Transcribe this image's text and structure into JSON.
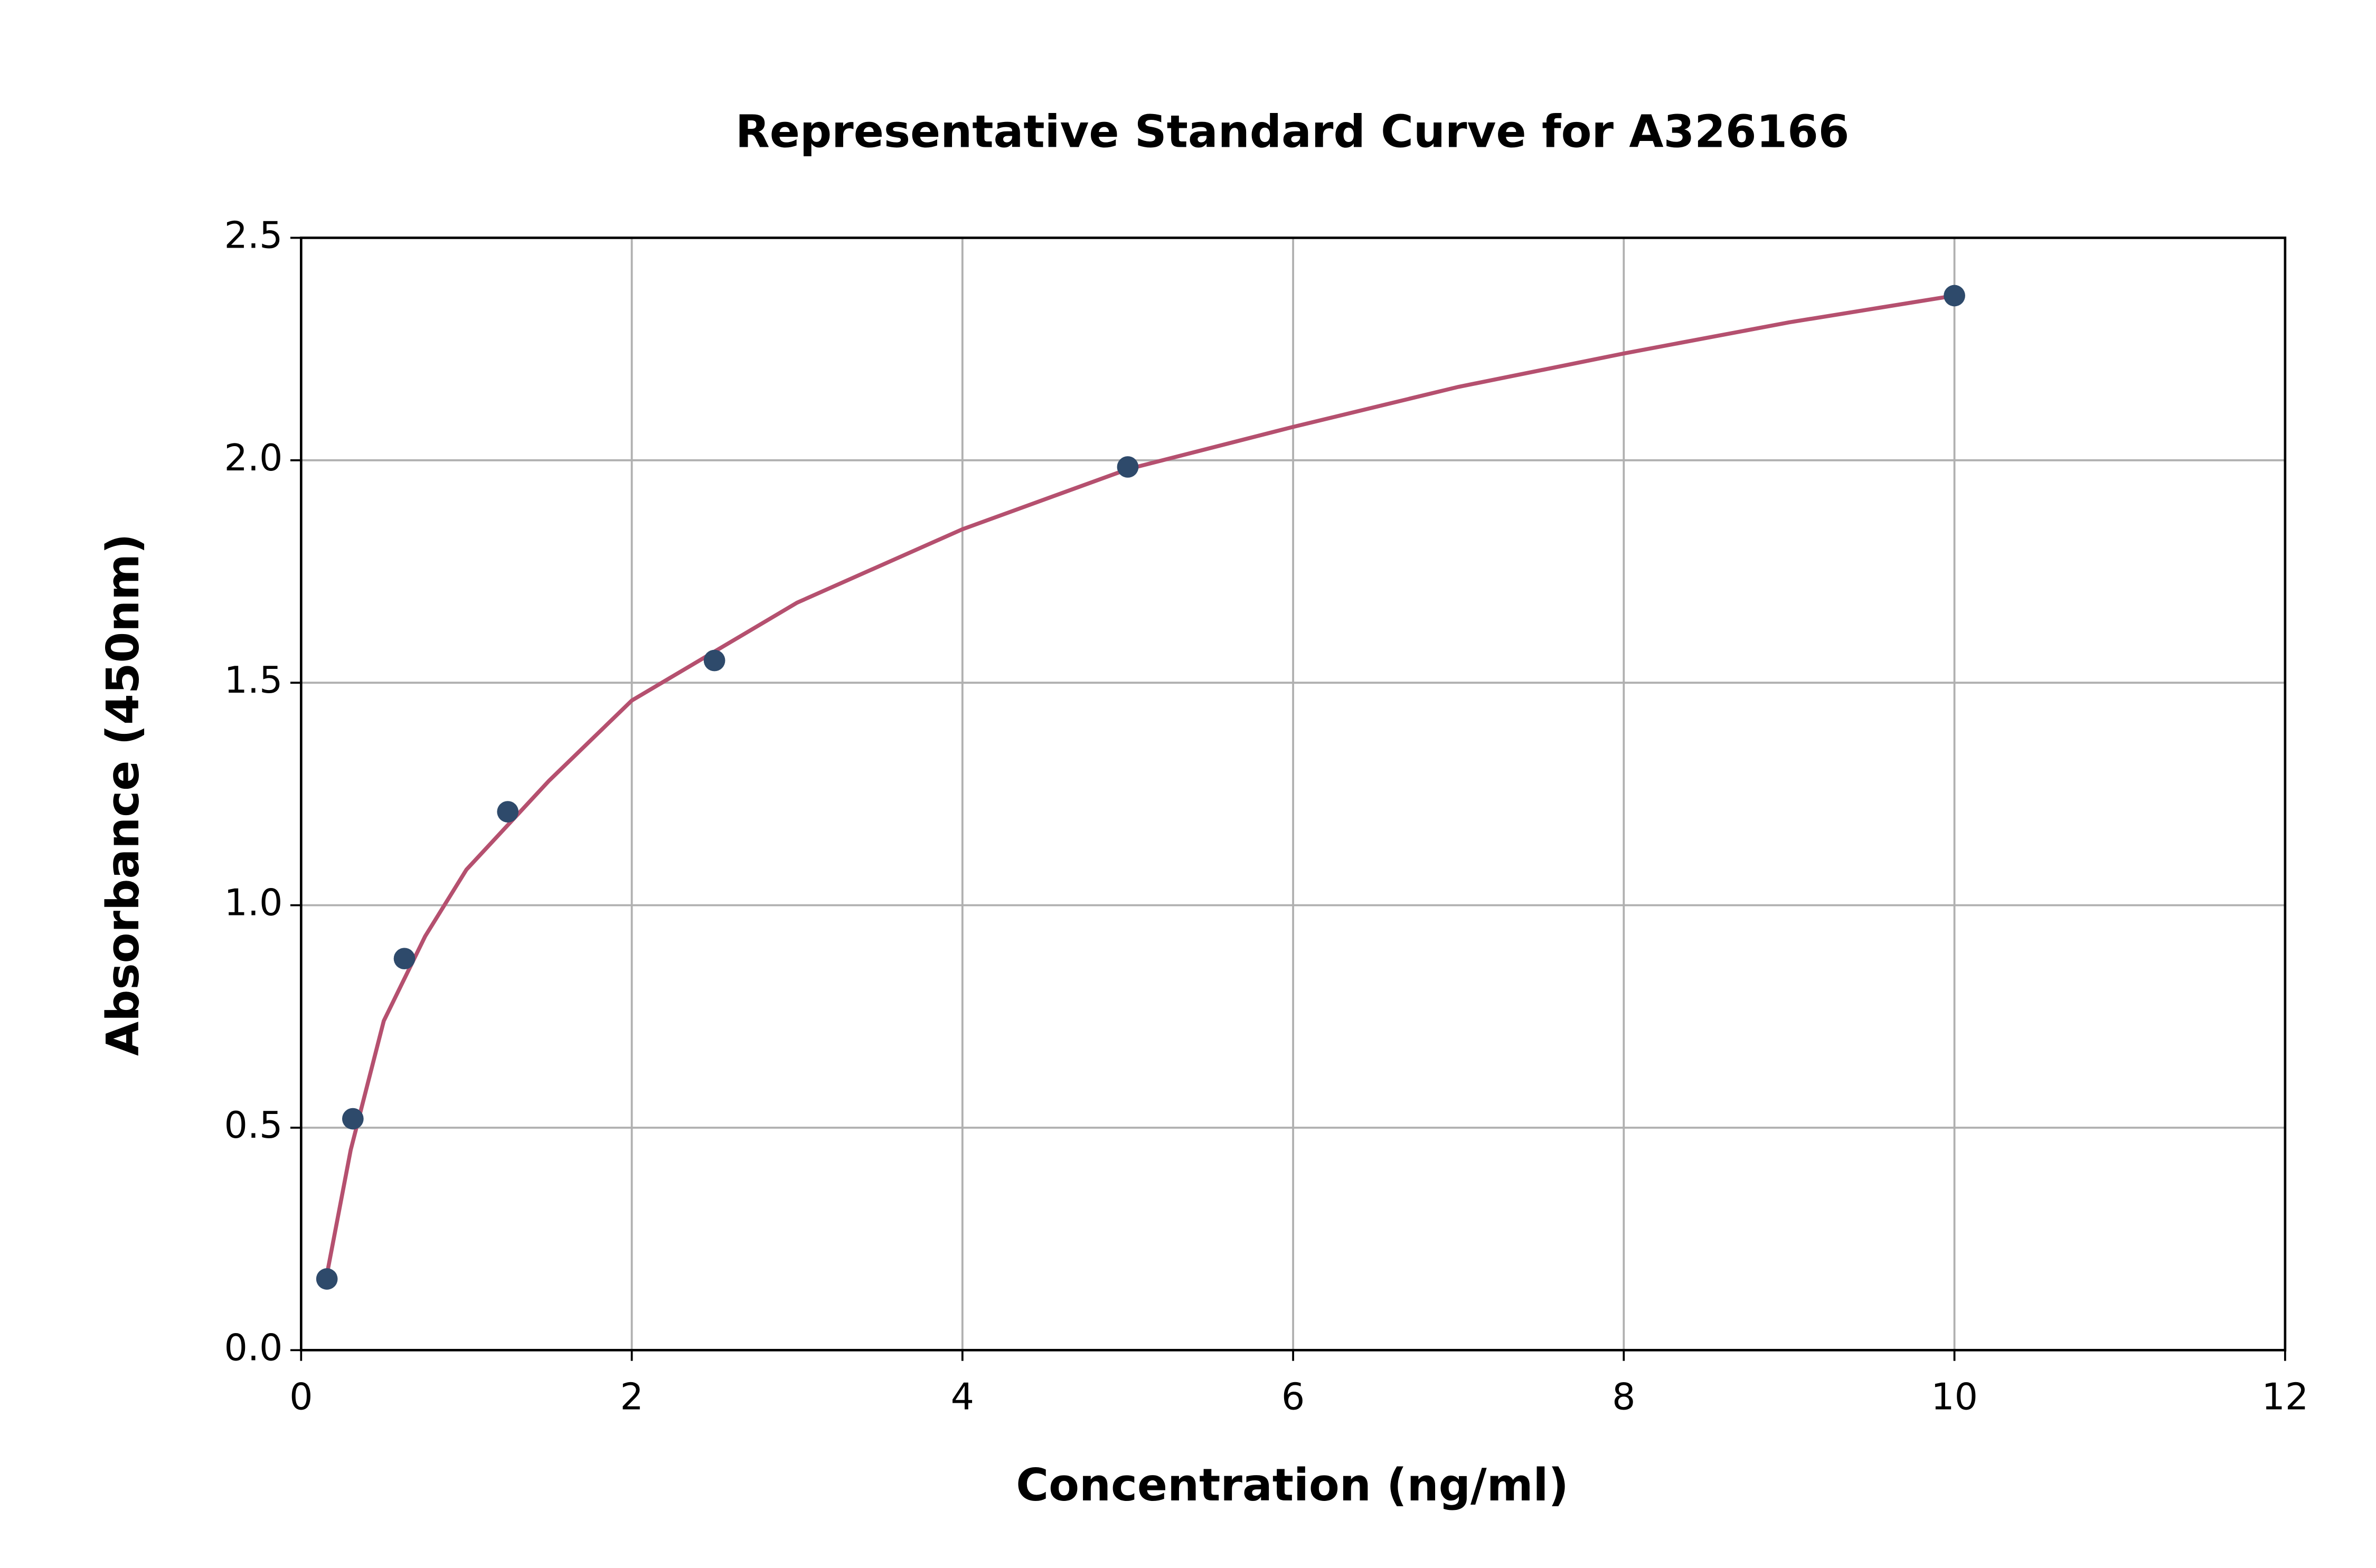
{
  "chart_data": {
    "type": "scatter",
    "title": "Representative Standard Curve for A326166",
    "x_label": "Concentration (ng/ml)",
    "y_label": "Absorbance (450nm)",
    "xlim": [
      0,
      12
    ],
    "xticks": [
      0,
      2,
      4,
      6,
      8,
      10,
      12
    ],
    "ylim": [
      0,
      2.5
    ],
    "yticks": [
      {
        "value": 0,
        "label": "0.0"
      },
      0.5,
      {
        "value": 1,
        "label": "1.0"
      },
      1.5,
      {
        "value": 2,
        "label": "2.0"
      },
      2.5
    ],
    "grid": true,
    "series": [
      {
        "type": "line",
        "color": "#b5506f",
        "x": [
          0.156,
          0.3,
          0.5,
          0.75,
          1,
          1.5,
          2,
          3,
          4,
          5,
          6,
          7,
          8,
          9,
          10
        ],
        "values": [
          0.17,
          0.45,
          0.74,
          0.93,
          1.08,
          1.28,
          1.46,
          1.68,
          1.845,
          1.98,
          2.075,
          2.165,
          2.24,
          2.31,
          2.37
        ]
      },
      {
        "type": "scatter",
        "color": "#2e4a6b",
        "x": [
          0.156,
          0.313,
          0.625,
          1.25,
          2.5,
          5,
          10
        ],
        "values": [
          0.16,
          0.52,
          0.88,
          1.21,
          1.55,
          1.985,
          2.37
        ]
      }
    ]
  }
}
